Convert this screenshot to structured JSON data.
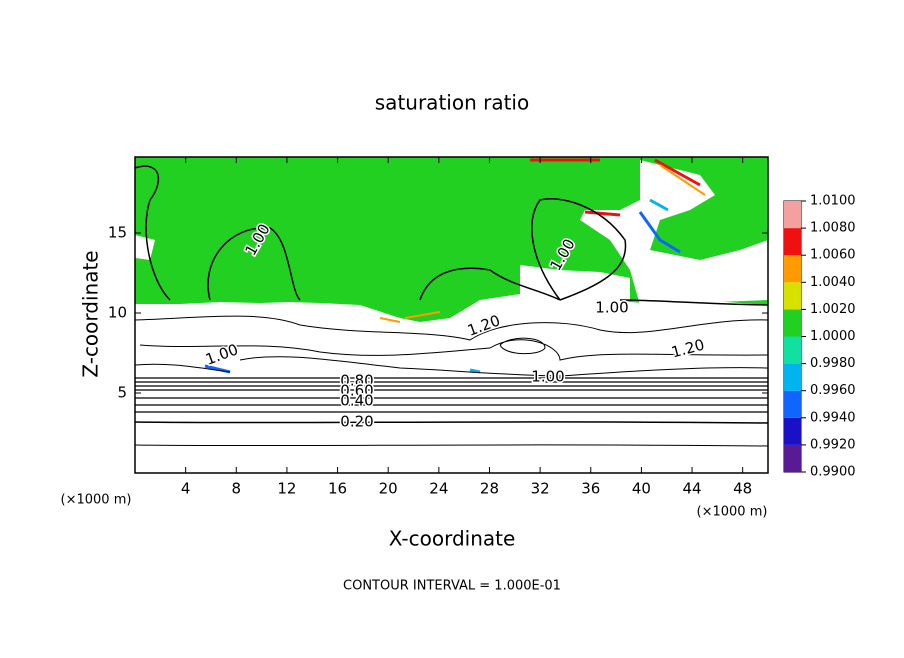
{
  "chart_data": {
    "type": "contour",
    "title": "saturation ratio",
    "x_label": "X-coordinate",
    "y_label": "Z-coordinate",
    "x_unit": "(×1000 m)",
    "y_unit": "(×1000 m)",
    "footnote": "CONTOUR INTERVAL = 1.000E-01",
    "xlim": [
      0,
      50
    ],
    "ylim": [
      0,
      19.75
    ],
    "xticks": [
      4,
      8,
      12,
      16,
      20,
      24,
      28,
      32,
      36,
      40,
      44,
      48
    ],
    "yticks": [
      5,
      10,
      15
    ],
    "contour_labels": [
      "1.00",
      "1.00",
      "1.00",
      "1.00",
      "1.00",
      "1.20",
      "1.20",
      "0.80",
      "0.60",
      "0.40",
      "0.20"
    ],
    "colorbar": {
      "ticks": [
        {
          "value": 0.99,
          "label": "0.9900"
        },
        {
          "value": 0.992,
          "label": "0.9920"
        },
        {
          "value": 0.994,
          "label": "0.9940"
        },
        {
          "value": 0.996,
          "label": "0.9960"
        },
        {
          "value": 0.998,
          "label": "0.9980"
        },
        {
          "value": 1.0,
          "label": "1.0000"
        },
        {
          "value": 1.002,
          "label": "1.0020"
        },
        {
          "value": 1.004,
          "label": "1.0040"
        },
        {
          "value": 1.006,
          "label": "1.0060"
        },
        {
          "value": 1.008,
          "label": "1.0080"
        },
        {
          "value": 1.01,
          "label": "1.0100"
        }
      ],
      "colors": [
        "#5a1a96",
        "#1a10c8",
        "#1064ff",
        "#00b4f0",
        "#10e0a0",
        "#22d022",
        "#d8e000",
        "#ff9a00",
        "#f01010",
        "#f4a0a0"
      ]
    }
  }
}
